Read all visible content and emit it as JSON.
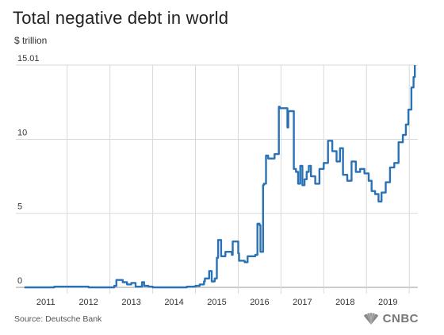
{
  "chart_data": {
    "type": "line",
    "title": "Total negative debt in world",
    "subtitle": "$ trillion",
    "source": "Source: Deutsche Bank",
    "brand": "CNBC",
    "xlabel": "",
    "ylabel": "",
    "xlim": [
      2010.3,
      2019.7
    ],
    "ylim": [
      0,
      15.01
    ],
    "x_ticks": [
      "2011",
      "2012",
      "2013",
      "2014",
      "2015",
      "2016",
      "2017",
      "2018",
      "2019"
    ],
    "y_ticks": [
      {
        "value": 0,
        "label": "0"
      },
      {
        "value": 5,
        "label": "5"
      },
      {
        "value": 10,
        "label": "10"
      },
      {
        "value": 15.01,
        "label": "15.01"
      }
    ],
    "grid": true,
    "line_color": "#2a72b5",
    "series": [
      {
        "name": "",
        "x": [
          2010.5,
          2011.2,
          2012.0,
          2012.6,
          2012.65,
          2012.8,
          2012.9,
          2013.0,
          2013.1,
          2013.25,
          2013.3,
          2013.4,
          2013.5,
          2014.3,
          2014.5,
          2014.6,
          2014.7,
          2014.72,
          2014.82,
          2014.88,
          2014.95,
          2015.0,
          2015.03,
          2015.1,
          2015.2,
          2015.35,
          2015.37,
          2015.5,
          2015.52,
          2015.65,
          2015.72,
          2015.9,
          2015.95,
          2016.0,
          2016.02,
          2016.08,
          2016.1,
          2016.15,
          2016.2,
          2016.35,
          2016.45,
          2016.47,
          2016.65,
          2016.67,
          2016.8,
          2016.85,
          2016.9,
          2016.95,
          2017.0,
          2017.05,
          2017.1,
          2017.15,
          2017.2,
          2017.3,
          2017.4,
          2017.5,
          2017.6,
          2017.7,
          2017.8,
          2017.88,
          2017.95,
          2018.05,
          2018.15,
          2018.25,
          2018.35,
          2018.45,
          2018.55,
          2018.62,
          2018.7,
          2018.78,
          2018.85,
          2018.95,
          2019.05,
          2019.15,
          2019.25,
          2019.35,
          2019.42,
          2019.48,
          2019.55,
          2019.6,
          2019.63
        ],
        "y": [
          0.0,
          0.05,
          0.0,
          0.1,
          0.5,
          0.35,
          0.2,
          0.3,
          0.05,
          0.35,
          0.1,
          0.05,
          0.0,
          0.05,
          0.1,
          0.2,
          0.4,
          0.6,
          1.1,
          0.4,
          0.6,
          2.0,
          3.2,
          2.1,
          2.4,
          2.2,
          3.1,
          2.3,
          1.8,
          1.7,
          2.1,
          2.2,
          4.3,
          4.2,
          2.4,
          6.9,
          7.0,
          8.9,
          8.7,
          9.0,
          12.2,
          12.1,
          10.8,
          11.9,
          8.0,
          7.8,
          7.0,
          8.2,
          6.9,
          7.3,
          7.8,
          8.2,
          7.5,
          7.0,
          8.0,
          8.4,
          9.9,
          9.2,
          8.5,
          9.4,
          7.6,
          7.2,
          8.5,
          7.8,
          8.0,
          7.7,
          7.2,
          6.5,
          6.3,
          5.8,
          6.4,
          7.1,
          8.1,
          8.4,
          9.8,
          10.3,
          11.0,
          12.0,
          13.5,
          14.2,
          15.01
        ]
      }
    ]
  }
}
